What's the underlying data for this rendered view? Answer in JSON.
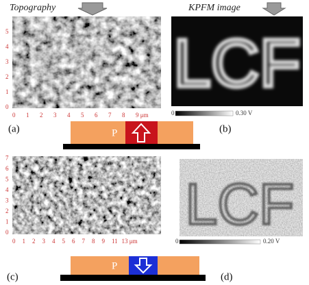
{
  "panels": [
    {
      "label": "(a)",
      "title": "Topography",
      "x_ticks": [
        "0",
        "1",
        "2",
        "3",
        "4",
        "5",
        "6",
        "7",
        "8",
        "9 μm"
      ],
      "y_ticks": [
        "0",
        "1",
        "2",
        "3",
        "4",
        "5"
      ]
    },
    {
      "label": "(b)",
      "title": "KPFM image",
      "image_text": "LCF",
      "colorbar_ticks": [
        "0",
        "0.30 V"
      ]
    },
    {
      "label": "(c)",
      "x_ticks": [
        "0",
        "1",
        "2",
        "3",
        "4",
        "5",
        "6",
        "7",
        "8",
        "9",
        "11",
        "13 μm"
      ],
      "y_ticks": [
        "0",
        "1",
        "2",
        "3",
        "4",
        "5",
        "6",
        "7"
      ]
    },
    {
      "label": "(d)",
      "image_text": "LCF",
      "colorbar_ticks": [
        "0",
        "0.20 V"
      ]
    }
  ],
  "diagrams": [
    {
      "label": "P"
    },
    {
      "label": "P"
    }
  ]
}
